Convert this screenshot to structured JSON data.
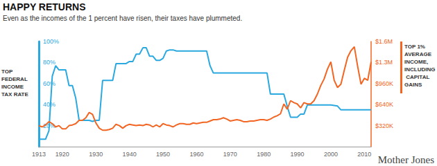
{
  "chart_data": {
    "type": "line",
    "title": "HAPPY RETURNS",
    "subtitle": "Even as the incomes of the 1 percent have risen, their taxes have plummeted.",
    "source": "Mother Jones",
    "ylabel": "TOP FEDERAL INCOME TAX RATE",
    "y2label": "TOP 1% AVERAGE INCOME, INCLUDING CAPITAL GAINS",
    "grid": false,
    "x": [
      1913,
      1914,
      1915,
      1916,
      1917,
      1918,
      1919,
      1920,
      1921,
      1922,
      1923,
      1924,
      1925,
      1926,
      1927,
      1928,
      1929,
      1930,
      1931,
      1932,
      1933,
      1934,
      1935,
      1936,
      1937,
      1938,
      1939,
      1940,
      1941,
      1942,
      1943,
      1944,
      1945,
      1946,
      1947,
      1948,
      1949,
      1950,
      1951,
      1952,
      1953,
      1954,
      1955,
      1956,
      1957,
      1958,
      1959,
      1960,
      1961,
      1962,
      1963,
      1964,
      1965,
      1966,
      1967,
      1968,
      1969,
      1970,
      1971,
      1972,
      1973,
      1974,
      1975,
      1976,
      1977,
      1978,
      1979,
      1980,
      1981,
      1982,
      1983,
      1984,
      1985,
      1986,
      1987,
      1988,
      1989,
      1990,
      1991,
      1992,
      1993,
      1994,
      1995,
      1996,
      1997,
      1998,
      1999,
      2000,
      2001,
      2002,
      2003,
      2004,
      2005,
      2006,
      2007,
      2008,
      2009,
      2010,
      2011,
      2012
    ],
    "xlim": [
      1913,
      2012
    ],
    "xticks": [
      1913,
      1920,
      1930,
      1940,
      1950,
      1960,
      1970,
      1980,
      1990,
      2000,
      2010
    ],
    "ylim": [
      0,
      100
    ],
    "yticks": [
      {
        "value": 20,
        "label": "20%"
      },
      {
        "value": 40,
        "label": "40%"
      },
      {
        "value": 60,
        "label": "60%"
      },
      {
        "value": 80,
        "label": "80%"
      },
      {
        "value": 100,
        "label": "100%"
      }
    ],
    "y2lim": [
      0,
      1600000
    ],
    "y2ticks": [
      {
        "value": 320000,
        "label": "$320K"
      },
      {
        "value": 640000,
        "label": "$640K"
      },
      {
        "value": 960000,
        "label": "$960K"
      },
      {
        "value": 1280000,
        "label": "$1.3M"
      },
      {
        "value": 1600000,
        "label": "$1.6M"
      }
    ],
    "series": [
      {
        "name": "TOP FEDERAL INCOME TAX RATE",
        "color": "#2aa8e0",
        "axis": "y",
        "values": [
          7,
          7,
          7,
          15,
          67,
          77,
          73,
          73,
          73,
          58,
          58,
          46,
          25,
          25,
          25,
          25,
          24,
          25,
          25,
          63,
          63,
          63,
          63,
          79,
          79,
          79,
          79,
          81,
          81,
          88,
          88,
          94,
          94,
          86,
          86,
          82,
          82,
          84,
          91,
          92,
          92,
          91,
          91,
          91,
          91,
          91,
          91,
          91,
          91,
          91,
          91,
          77,
          70,
          70,
          70,
          70,
          70,
          70,
          70,
          70,
          70,
          70,
          70,
          70,
          70,
          70,
          70,
          70,
          70,
          50,
          50,
          50,
          50,
          50,
          38.5,
          28,
          28,
          28,
          31,
          31,
          39.6,
          39.6,
          39.6,
          39.6,
          39.6,
          39.6,
          39.6,
          39.6,
          39.1,
          38.6,
          35,
          35,
          35,
          35,
          35,
          35,
          35,
          35,
          35,
          35
        ]
      },
      {
        "name": "TOP 1% AVERAGE INCOME, INCLUDING CAPITAL GAINS",
        "color": "#f26522",
        "axis": "y2",
        "values": [
          320000,
          300000,
          330000,
          380000,
          350000,
          300000,
          320000,
          270000,
          270000,
          320000,
          330000,
          350000,
          400000,
          400000,
          440000,
          520000,
          490000,
          360000,
          280000,
          250000,
          250000,
          260000,
          280000,
          340000,
          320000,
          280000,
          320000,
          340000,
          330000,
          320000,
          330000,
          320000,
          340000,
          330000,
          300000,
          330000,
          300000,
          350000,
          330000,
          320000,
          300000,
          330000,
          350000,
          350000,
          340000,
          340000,
          360000,
          350000,
          360000,
          370000,
          370000,
          390000,
          410000,
          410000,
          420000,
          440000,
          420000,
          390000,
          400000,
          410000,
          400000,
          380000,
          380000,
          390000,
          390000,
          400000,
          410000,
          410000,
          400000,
          420000,
          450000,
          470000,
          500000,
          650000,
          570000,
          700000,
          670000,
          650000,
          590000,
          670000,
          650000,
          650000,
          700000,
          800000,
          930000,
          1030000,
          1180000,
          1290000,
          1010000,
          900000,
          950000,
          1160000,
          1360000,
          1460000,
          1520000,
          1220000,
          950000,
          1040000,
          1010000,
          1290000
        ]
      }
    ]
  }
}
